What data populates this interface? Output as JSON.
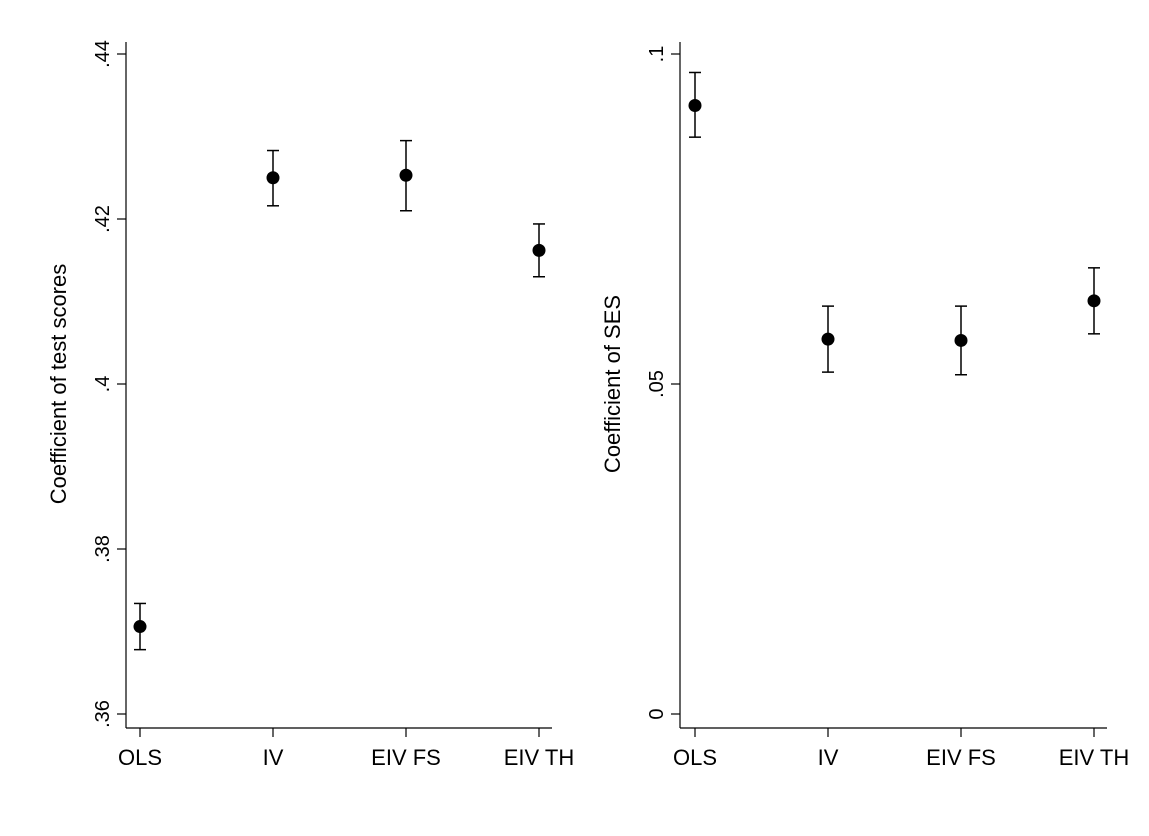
{
  "chart_data": [
    {
      "type": "scatter",
      "categories": [
        "OLS",
        "IV",
        "EIV FS",
        "EIV TH"
      ],
      "ylabel": "Coefficient of test scores",
      "ylim": [
        0.36,
        0.44
      ],
      "yticks": [
        {
          "value": 0.36,
          "label": ".36"
        },
        {
          "value": 0.38,
          "label": ".38"
        },
        {
          "value": 0.4,
          "label": ".4"
        },
        {
          "value": 0.42,
          "label": ".42"
        },
        {
          "value": 0.44,
          "label": ".44"
        }
      ],
      "series": [
        {
          "values": [
            0.3706,
            0.425,
            0.4253,
            0.4162
          ],
          "lower": [
            0.3678,
            0.4216,
            0.421,
            0.413
          ],
          "upper": [
            0.3734,
            0.4283,
            0.4295,
            0.4194
          ]
        }
      ],
      "grid": false,
      "marker_color": "#000000"
    },
    {
      "type": "scatter",
      "categories": [
        "OLS",
        "IV",
        "EIV FS",
        "EIV TH"
      ],
      "ylabel": "Coefficient of SES",
      "ylim": [
        0,
        0.1
      ],
      "yticks": [
        {
          "value": 0,
          "label": "0"
        },
        {
          "value": 0.05,
          "label": ".05"
        },
        {
          "value": 0.1,
          "label": ".1"
        }
      ],
      "series": [
        {
          "values": [
            0.0922,
            0.0568,
            0.0566,
            0.0626
          ],
          "lower": [
            0.0874,
            0.0518,
            0.0514,
            0.0576
          ],
          "upper": [
            0.0972,
            0.0618,
            0.0618,
            0.0676
          ]
        }
      ],
      "grid": false,
      "marker_color": "#000000"
    }
  ]
}
